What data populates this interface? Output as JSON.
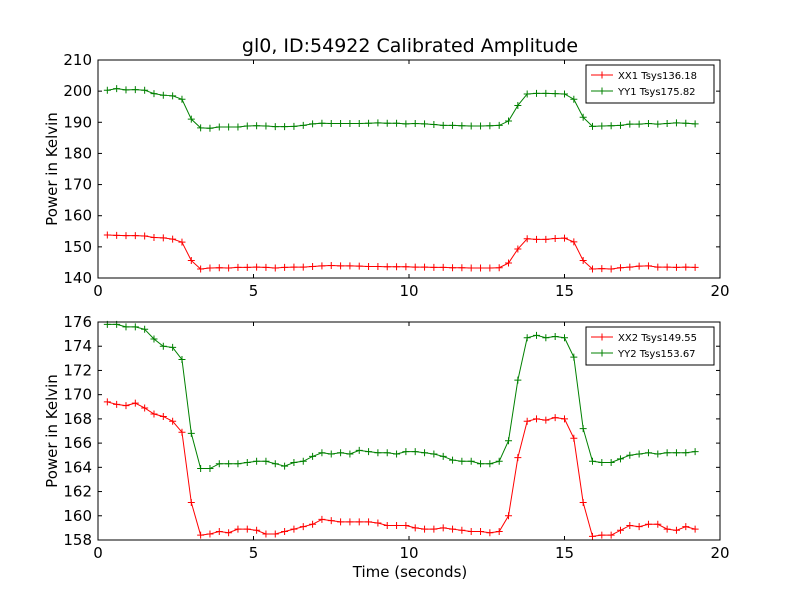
{
  "figure": {
    "title": "gl0, ID:54922 Calibrated Amplitude",
    "xlabel": "Time (seconds)"
  },
  "chart_data": [
    {
      "type": "line",
      "ylabel": "Power in Kelvin",
      "xlim": [
        0,
        20
      ],
      "ylim": [
        140,
        210
      ],
      "xticks": [
        0,
        5,
        10,
        15,
        20
      ],
      "yticks": [
        140,
        150,
        160,
        170,
        180,
        190,
        200,
        210
      ],
      "grid": false,
      "legend_position": "top-right",
      "x": [
        0.3,
        0.6,
        0.9,
        1.2,
        1.5,
        1.8,
        2.1,
        2.4,
        2.7,
        3.0,
        3.3,
        3.6,
        3.9,
        4.2,
        4.5,
        4.8,
        5.1,
        5.4,
        5.7,
        6.0,
        6.3,
        6.6,
        6.9,
        7.2,
        7.5,
        7.8,
        8.1,
        8.4,
        8.7,
        9.0,
        9.3,
        9.6,
        9.9,
        10.2,
        10.5,
        10.8,
        11.1,
        11.4,
        11.7,
        12.0,
        12.3,
        12.6,
        12.9,
        13.2,
        13.5,
        13.8,
        14.1,
        14.4,
        14.7,
        15.0,
        15.3,
        15.6,
        15.9,
        16.2,
        16.5,
        16.8,
        17.1,
        17.4,
        17.7,
        18.0,
        18.3,
        18.6,
        18.9,
        19.2
      ],
      "series": [
        {
          "name": "XX1 Tsys136.18",
          "color": "#ff0000",
          "values": [
            153.8,
            153.7,
            153.6,
            153.6,
            153.5,
            153.0,
            152.9,
            152.5,
            151.5,
            145.6,
            142.9,
            143.2,
            143.3,
            143.2,
            143.4,
            143.4,
            143.5,
            143.4,
            143.2,
            143.4,
            143.5,
            143.5,
            143.7,
            143.9,
            144.0,
            143.9,
            143.9,
            143.8,
            143.7,
            143.7,
            143.6,
            143.6,
            143.6,
            143.5,
            143.5,
            143.4,
            143.4,
            143.3,
            143.3,
            143.2,
            143.2,
            143.2,
            143.3,
            144.8,
            149.3,
            152.6,
            152.4,
            152.4,
            152.7,
            152.8,
            151.6,
            145.6,
            142.9,
            143.0,
            142.9,
            143.3,
            143.5,
            143.8,
            143.9,
            143.5,
            143.5,
            143.4,
            143.5,
            143.4
          ]
        },
        {
          "name": "YY1 Tsys175.82",
          "color": "#008000",
          "values": [
            200.3,
            200.8,
            200.4,
            200.5,
            200.3,
            199.2,
            198.7,
            198.5,
            197.4,
            191.0,
            188.2,
            188.1,
            188.5,
            188.5,
            188.5,
            188.8,
            188.9,
            188.8,
            188.6,
            188.6,
            188.7,
            189.0,
            189.5,
            189.7,
            189.6,
            189.6,
            189.6,
            189.6,
            189.7,
            189.8,
            189.7,
            189.7,
            189.5,
            189.6,
            189.5,
            189.3,
            189.0,
            189.0,
            188.9,
            188.8,
            188.8,
            188.9,
            189.0,
            190.4,
            195.4,
            199.1,
            199.3,
            199.3,
            199.2,
            199.1,
            197.4,
            191.6,
            188.7,
            188.8,
            188.9,
            189.0,
            189.4,
            189.4,
            189.6,
            189.4,
            189.6,
            189.8,
            189.7,
            189.5
          ]
        }
      ]
    },
    {
      "type": "line",
      "ylabel": "Power in Kelvin",
      "xlabel": "Time (seconds)",
      "xlim": [
        0,
        20
      ],
      "ylim": [
        158,
        176
      ],
      "xticks": [
        0,
        5,
        10,
        15,
        20
      ],
      "yticks": [
        158,
        160,
        162,
        164,
        166,
        168,
        170,
        172,
        174,
        176
      ],
      "grid": false,
      "legend_position": "top-right",
      "x": [
        0.3,
        0.6,
        0.9,
        1.2,
        1.5,
        1.8,
        2.1,
        2.4,
        2.7,
        3.0,
        3.3,
        3.6,
        3.9,
        4.2,
        4.5,
        4.8,
        5.1,
        5.4,
        5.7,
        6.0,
        6.3,
        6.6,
        6.9,
        7.2,
        7.5,
        7.8,
        8.1,
        8.4,
        8.7,
        9.0,
        9.3,
        9.6,
        9.9,
        10.2,
        10.5,
        10.8,
        11.1,
        11.4,
        11.7,
        12.0,
        12.3,
        12.6,
        12.9,
        13.2,
        13.5,
        13.8,
        14.1,
        14.4,
        14.7,
        15.0,
        15.3,
        15.6,
        15.9,
        16.2,
        16.5,
        16.8,
        17.1,
        17.4,
        17.7,
        18.0,
        18.3,
        18.6,
        18.9,
        19.2
      ],
      "series": [
        {
          "name": "XX2 Tsys149.55",
          "color": "#ff0000",
          "values": [
            169.4,
            169.2,
            169.1,
            169.3,
            168.9,
            168.4,
            168.2,
            167.8,
            166.9,
            161.1,
            158.4,
            158.5,
            158.7,
            158.6,
            158.9,
            158.9,
            158.8,
            158.5,
            158.5,
            158.7,
            158.9,
            159.1,
            159.3,
            159.7,
            159.6,
            159.5,
            159.5,
            159.5,
            159.5,
            159.4,
            159.2,
            159.2,
            159.2,
            159.0,
            158.9,
            158.9,
            159.0,
            158.9,
            158.8,
            158.7,
            158.7,
            158.6,
            158.7,
            160.0,
            164.8,
            167.8,
            168.0,
            167.9,
            168.1,
            168.0,
            166.4,
            161.1,
            158.3,
            158.4,
            158.4,
            158.8,
            159.2,
            159.1,
            159.3,
            159.3,
            158.9,
            158.8,
            159.1,
            158.9
          ]
        },
        {
          "name": "YY2 Tsys153.67",
          "color": "#008000",
          "values": [
            175.8,
            175.8,
            175.6,
            175.6,
            175.4,
            174.6,
            174.0,
            173.9,
            172.9,
            166.8,
            163.9,
            163.9,
            164.3,
            164.3,
            164.3,
            164.4,
            164.5,
            164.5,
            164.3,
            164.1,
            164.4,
            164.5,
            164.9,
            165.2,
            165.1,
            165.2,
            165.1,
            165.4,
            165.3,
            165.2,
            165.2,
            165.1,
            165.3,
            165.3,
            165.2,
            165.1,
            164.9,
            164.6,
            164.5,
            164.5,
            164.3,
            164.3,
            164.5,
            166.2,
            171.2,
            174.7,
            174.9,
            174.7,
            174.8,
            174.7,
            173.1,
            167.2,
            164.5,
            164.4,
            164.4,
            164.7,
            165.0,
            165.1,
            165.2,
            165.1,
            165.2,
            165.2,
            165.2,
            165.3
          ]
        }
      ]
    }
  ]
}
